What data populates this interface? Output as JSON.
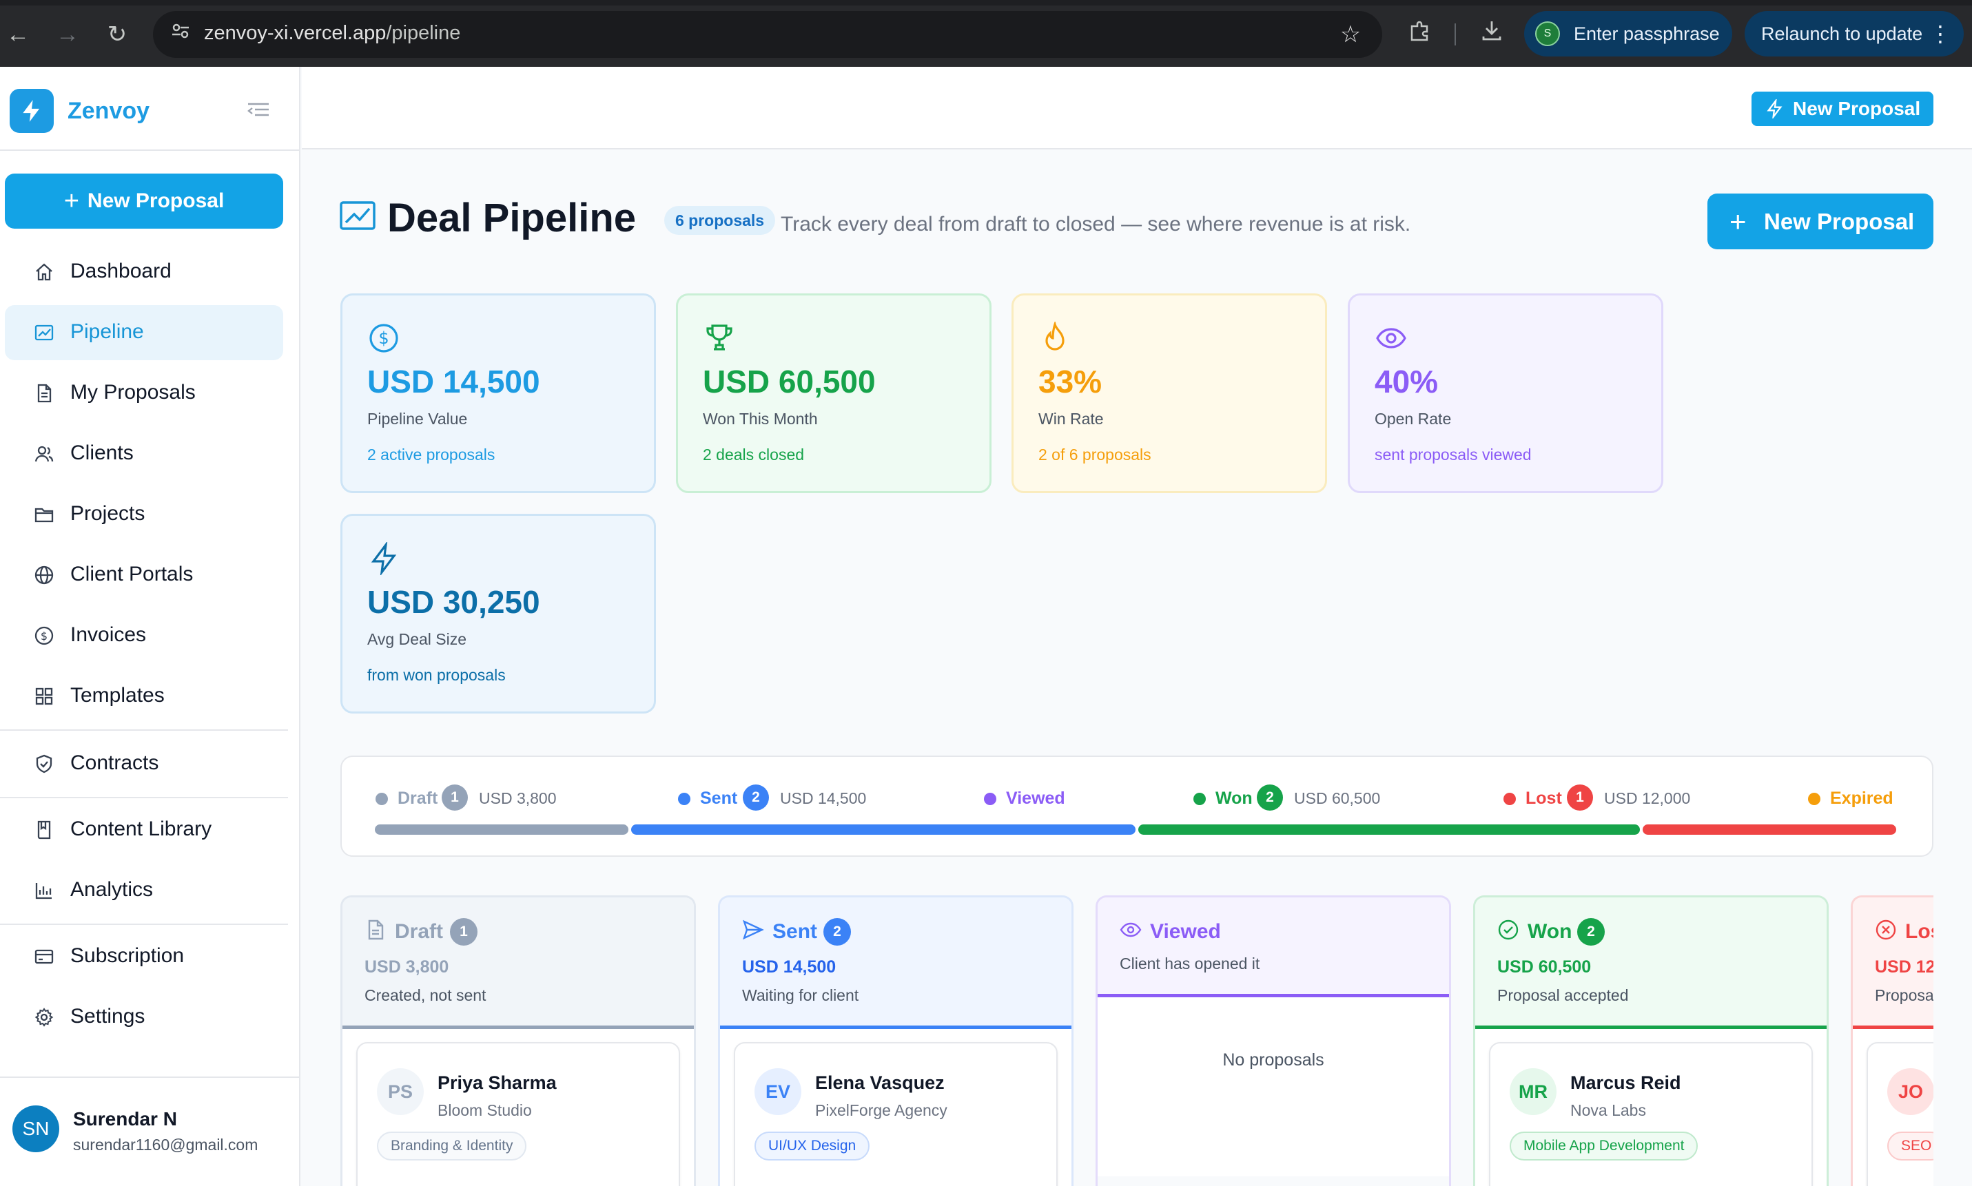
{
  "browser": {
    "url_host": "zenvoy-xi.vercel.app",
    "url_path": "/pipeline",
    "profile_initial": "S",
    "passphrase_label": "Enter passphrase",
    "relaunch_label": "Relaunch to update"
  },
  "sidebar": {
    "brand": "Zenvoy",
    "new_proposal": "New Proposal",
    "items": [
      {
        "label": "Dashboard",
        "icon": "home-icon"
      },
      {
        "label": "Pipeline",
        "icon": "chart-line-icon",
        "active": true
      },
      {
        "label": "My Proposals",
        "icon": "document-icon"
      },
      {
        "label": "Clients",
        "icon": "users-icon"
      },
      {
        "label": "Projects",
        "icon": "folder-icon"
      },
      {
        "label": "Client Portals",
        "icon": "globe-icon"
      },
      {
        "label": "Invoices",
        "icon": "dollar-circle-icon"
      },
      {
        "label": "Templates",
        "icon": "grid-icon"
      },
      {
        "label": "Contracts",
        "icon": "shield-check-icon"
      },
      {
        "label": "Content Library",
        "icon": "book-icon"
      },
      {
        "label": "Analytics",
        "icon": "bar-chart-icon"
      },
      {
        "label": "Subscription",
        "icon": "credit-card-icon"
      },
      {
        "label": "Settings",
        "icon": "gear-icon"
      }
    ],
    "user": {
      "initials": "SN",
      "name": "Surendar N",
      "email": "surendar1160@gmail.com"
    }
  },
  "topbar": {
    "new_proposal": "New Proposal"
  },
  "header": {
    "title": "Deal Pipeline",
    "count_badge": "6 proposals",
    "subtitle": "Track every deal from draft to closed — see where revenue is at risk.",
    "new_proposal": "New Proposal",
    "new_plus": "+"
  },
  "stats": [
    {
      "value": "USD 14,500",
      "label": "Pipeline Value",
      "note": "2 active proposals",
      "icon": "dollar-circle-icon",
      "color": "#1d9be2"
    },
    {
      "value": "USD 60,500",
      "label": "Won This Month",
      "note": "2 deals closed",
      "icon": "trophy-icon",
      "color": "#16a34a"
    },
    {
      "value": "33%",
      "label": "Win Rate",
      "note": "2 of 6 proposals",
      "icon": "flame-icon",
      "color": "#f59e0b"
    },
    {
      "value": "40%",
      "label": "Open Rate",
      "note": "sent proposals viewed",
      "icon": "eye-icon",
      "color": "#8b5cf6"
    },
    {
      "value": "USD 30,250",
      "label": "Avg Deal Size",
      "note": "from won proposals",
      "icon": "bolt-icon",
      "color": "#0c6fa8"
    }
  ],
  "stages": [
    {
      "name": "Draft",
      "count": "1",
      "amount": "USD 3,800",
      "color": "#94a3b8"
    },
    {
      "name": "Sent",
      "count": "2",
      "amount": "USD 14,500",
      "color": "#3b82f6"
    },
    {
      "name": "Viewed",
      "count": "",
      "amount": "",
      "color": "#8b5cf6"
    },
    {
      "name": "Won",
      "count": "2",
      "amount": "USD 60,500",
      "color": "#16a34a"
    },
    {
      "name": "Lost",
      "count": "1",
      "amount": "USD 12,000",
      "color": "#ef4444"
    },
    {
      "name": "Expired",
      "count": "",
      "amount": "",
      "color": "#f59e0b"
    }
  ],
  "columns": [
    {
      "title": "Draft",
      "count": "1",
      "amount": "USD 3,800",
      "sub": "Created, not sent",
      "icon": "file-icon",
      "card": {
        "initials": "PS",
        "name": "Priya Sharma",
        "company": "Bloom Studio",
        "tag": "Branding & Identity"
      }
    },
    {
      "title": "Sent",
      "count": "2",
      "amount": "USD 14,500",
      "sub": "Waiting for client",
      "icon": "send-icon",
      "card": {
        "initials": "EV",
        "name": "Elena Vasquez",
        "company": "PixelForge Agency",
        "tag": "UI/UX Design"
      }
    },
    {
      "title": "Viewed",
      "sub": "Client has opened it",
      "icon": "eye-icon",
      "empty": "No proposals"
    },
    {
      "title": "Won",
      "count": "2",
      "amount": "USD 60,500",
      "sub": "Proposal accepted",
      "icon": "check-circle-icon",
      "card": {
        "initials": "MR",
        "name": "Marcus Reid",
        "company": "Nova Labs",
        "tag": "Mobile App Development"
      }
    },
    {
      "title": "Los",
      "amount": "USD 12,",
      "sub": "Proposa",
      "icon": "x-circle-icon",
      "card": {
        "initials": "JO",
        "tag": "SEO"
      }
    }
  ]
}
